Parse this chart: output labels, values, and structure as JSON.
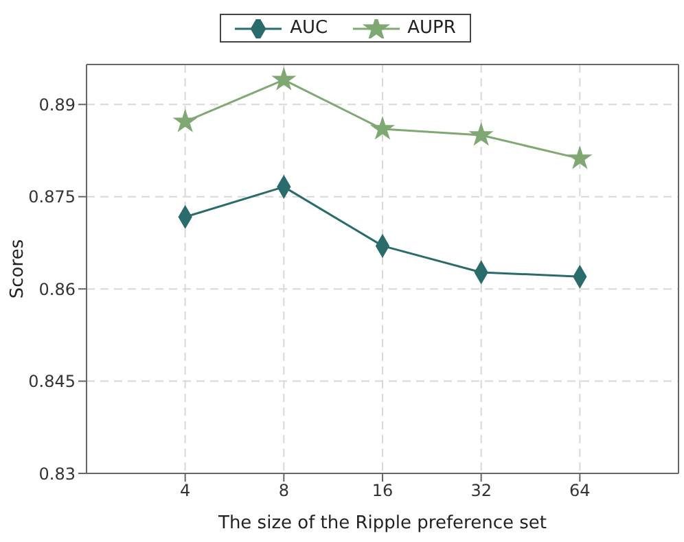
{
  "chart_data": {
    "type": "line",
    "xlabel": "The size of the Ripple preference set",
    "ylabel": "Scores",
    "categories": [
      "4",
      "8",
      "16",
      "32",
      "64"
    ],
    "series": [
      {
        "name": "AUC",
        "color": "#2a6b6b",
        "marker": "diamond",
        "values": [
          0.8717,
          0.8766,
          0.867,
          0.8627,
          0.862
        ]
      },
      {
        "name": "AUPR",
        "color": "#7fa872",
        "marker": "star",
        "values": [
          0.8872,
          0.894,
          0.886,
          0.885,
          0.8812
        ]
      }
    ],
    "ylim": [
      0.83,
      0.8965
    ],
    "yticks": [
      0.83,
      0.845,
      0.86,
      0.875,
      0.89
    ],
    "grid": true,
    "legend": "top",
    "line_style": "solid"
  }
}
